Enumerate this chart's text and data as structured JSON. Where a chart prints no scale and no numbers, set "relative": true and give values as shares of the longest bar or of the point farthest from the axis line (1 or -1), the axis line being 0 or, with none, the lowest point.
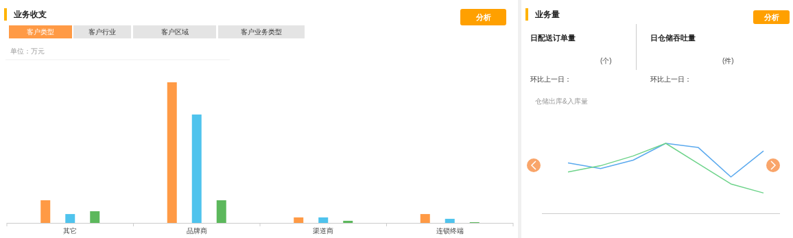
{
  "chart_data": [
    {
      "type": "bar",
      "title": "业务收支",
      "annotations": [
        "客户类型",
        "客户行业",
        "客户区域",
        "客户业务类型",
        "单位：万元",
        "分析"
      ],
      "categories": [
        "其它",
        "品牌商",
        "渠道商",
        "连锁终端"
      ],
      "relative": true,
      "series": [
        {
          "color": "#ff9a45",
          "values": [
            0.161,
            1,
            0.039,
            0.063
          ]
        },
        {
          "color": "#4fc3ed",
          "values": [
            0.063,
            0.771,
            0.039,
            0.029
          ]
        },
        {
          "color": "#5cb85c",
          "values": [
            0.083,
            0.161,
            0.015,
            0.005
          ]
        }
      ]
    },
    {
      "type": "other",
      "title": "业务量",
      "annotations": [
        "分析",
        "日配送订单量",
        "(个)",
        "环比上一日：",
        "日仓储吞吐量",
        "(件)",
        "环比上一日："
      ]
    },
    {
      "type": "line",
      "title": "仓储出库&入库量",
      "categories": [
        null,
        null,
        null,
        null,
        null,
        null,
        null
      ],
      "relative": true,
      "marker": "none",
      "series": [
        {
          "color": "#5aa9ee",
          "values": [
            0.72,
            0.64,
            0.76,
            1,
            0.94,
            0.52,
            0.89
          ]
        },
        {
          "color": "#6dd38a",
          "values": [
            0.59,
            0.68,
            0.82,
            1,
            0.71,
            0.42,
            0.29
          ]
        }
      ]
    }
  ]
}
